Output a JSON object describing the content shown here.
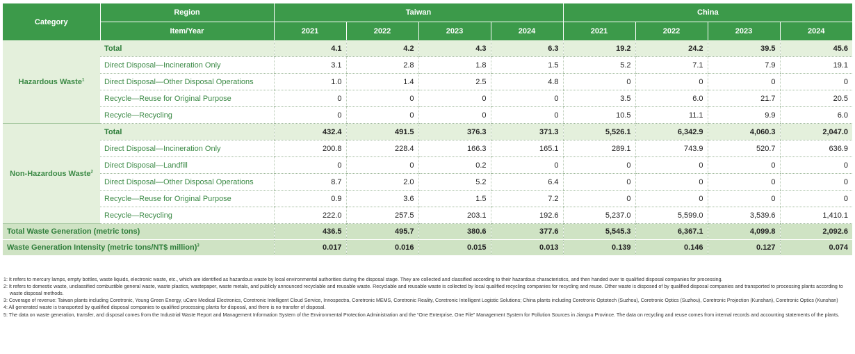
{
  "header": {
    "category": "Category",
    "region": "Region",
    "item_year": "Item/Year",
    "taiwan": "Taiwan",
    "china": "China",
    "years": [
      "2021",
      "2022",
      "2023",
      "2024",
      "2021",
      "2022",
      "2023",
      "2024"
    ]
  },
  "groups": [
    {
      "category": "Hazardous Waste",
      "sup": "1",
      "rows": [
        {
          "item": "Total",
          "values": [
            "4.1",
            "4.2",
            "4.3",
            "6.3",
            "19.2",
            "24.2",
            "39.5",
            "45.6"
          ],
          "total": true
        },
        {
          "item": "Direct Disposal—Incineration Only",
          "values": [
            "3.1",
            "2.8",
            "1.8",
            "1.5",
            "5.2",
            "7.1",
            "7.9",
            "19.1"
          ]
        },
        {
          "item": "Direct Disposal—Other Disposal Operations",
          "values": [
            "1.0",
            "1.4",
            "2.5",
            "4.8",
            "0",
            "0",
            "0",
            "0"
          ]
        },
        {
          "item": "Recycle—Reuse for Original Purpose",
          "values": [
            "0",
            "0",
            "0",
            "0",
            "3.5",
            "6.0",
            "21.7",
            "20.5"
          ]
        },
        {
          "item": "Recycle—Recycling",
          "values": [
            "0",
            "0",
            "0",
            "0",
            "10.5",
            "11.1",
            "9.9",
            "6.0"
          ]
        }
      ]
    },
    {
      "category": "Non-Hazardous Waste",
      "sup": "2",
      "rows": [
        {
          "item": "Total",
          "values": [
            "432.4",
            "491.5",
            "376.3",
            "371.3",
            "5,526.1",
            "6,342.9",
            "4,060.3",
            "2,047.0"
          ],
          "total": true
        },
        {
          "item": "Direct Disposal—Incineration Only",
          "values": [
            "200.8",
            "228.4",
            "166.3",
            "165.1",
            "289.1",
            "743.9",
            "520.7",
            "636.9"
          ]
        },
        {
          "item": "Direct Disposal—Landfill",
          "values": [
            "0",
            "0",
            "0.2",
            "0",
            "0",
            "0",
            "0",
            "0"
          ]
        },
        {
          "item": "Direct Disposal—Other Disposal Operations",
          "values": [
            "8.7",
            "2.0",
            "5.2",
            "6.4",
            "0",
            "0",
            "0",
            "0"
          ]
        },
        {
          "item": "Recycle—Reuse for Original Purpose",
          "values": [
            "0.9",
            "3.6",
            "1.5",
            "7.2",
            "0",
            "0",
            "0",
            "0"
          ]
        },
        {
          "item": "Recycle—Recycling",
          "values": [
            "222.0",
            "257.5",
            "203.1",
            "192.6",
            "5,237.0",
            "5,599.0",
            "3,539.6",
            "1,410.1"
          ]
        }
      ]
    }
  ],
  "summary": [
    {
      "label": "Total Waste Generation (metric tons)",
      "sup": "",
      "values": [
        "436.5",
        "495.7",
        "380.6",
        "377.6",
        "5,545.3",
        "6,367.1",
        "4,099.8",
        "2,092.6"
      ]
    },
    {
      "label": "Waste Generation Intensity (metric tons/NT$ million)",
      "sup": "3",
      "values": [
        "0.017",
        "0.016",
        "0.015",
        "0.013",
        "0.139",
        "0.146",
        "0.127",
        "0.074"
      ]
    }
  ],
  "notes": [
    "1: It refers to mercury lamps, empty bottles, waste liquids, electronic waste, etc., which are identified as hazardous waste by local environmental authorities during the disposal stage. They are collected and classified according to their hazardous characteristics, and then handed over to qualified disposal companies for processing.",
    "2: It refers to domestic waste, unclassified combustible general waste, waste plastics, wastepaper, waste metals, and publicly announced recyclable and reusable waste. Recyclable and reusable waste is collected by local qualified recycling companies for recycling and reuse. Other waste is disposed of by qualified disposal companies and transported to processing plants according to waste disposal methods.",
    "3: Coverage of revenue: Taiwan plants including Coretronic, Young Green Energy, uCare Medical Electronics, Coretronic Intelligent Cloud Service, Innospectra, Coretronic MEMS, Coretronic Reality, Coretronic Intelligent Logistic Solutions; China plants including Coretronic Optotech (Suzhou), Coretronic Optics (Suzhou), Coretronic Projection (Kunshan), Coretronic Optics (Kunshan)",
    "4: All generated waste is transported by qualified disposal companies to qualified processing plants for disposal, and there is no transfer of disposal.",
    "5: The data on waste generation, transfer, and disposal comes from the Industrial Waste Report and Management Information System of the Environmental Protection Administration and the “One Enterprise, One File” Management System for Pollution Sources in Jiangsu Province. The data on recycling and reuse comes from internal records and accounting statements of the plants."
  ],
  "colors": {
    "header_green": "#3c9a4a",
    "text_green": "#3c8a46",
    "total_row": "#e4f0dc",
    "summary_row": "#cfe3c4"
  }
}
